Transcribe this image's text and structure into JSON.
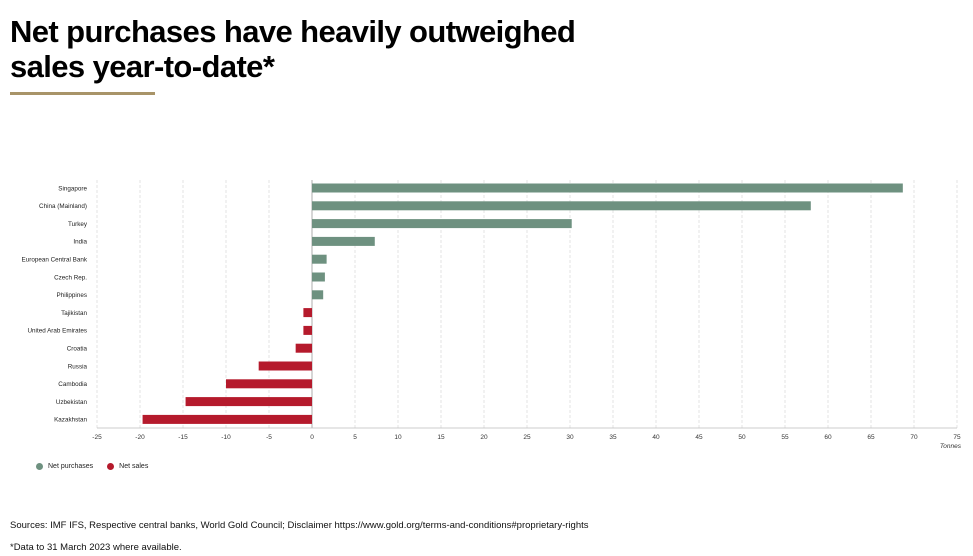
{
  "header": {
    "title_line1": "Net purchases have heavily outweighed",
    "title_line2": "sales year-to-date*",
    "accent_color": "#a89468"
  },
  "legend": {
    "purchases_label": "Net purchases",
    "sales_label": "Net sales"
  },
  "footer": {
    "sources": "Sources: IMF IFS, Respective central banks, World Gold Council; Disclaimer https://www.gold.org/terms-and-conditions#proprietary-rights",
    "note": "*Data to 31 March 2023 where available."
  },
  "chart_data": {
    "type": "bar",
    "orientation": "horizontal",
    "title": "Net purchases have heavily outweighed sales year-to-date*",
    "xlabel": "Tonnes",
    "ylabel": "",
    "xlim": [
      -25,
      75
    ],
    "xticks": [
      -25,
      -20,
      -15,
      -10,
      -5,
      0,
      5,
      10,
      15,
      20,
      25,
      30,
      35,
      40,
      45,
      50,
      55,
      60,
      65,
      70,
      75
    ],
    "grid": "vertical dashed",
    "legend_position": "bottom-left",
    "colors": {
      "purchases": "#6e9180",
      "sales": "#b51a2c"
    },
    "categories": [
      "Singapore",
      "China (Mainland)",
      "Turkey",
      "India",
      "European Central Bank",
      "Czech Rep.",
      "Philippines",
      "Tajikistan",
      "United Arab Emirates",
      "Croatia",
      "Russia",
      "Cambodia",
      "Uzbekistan",
      "Kazakhstan"
    ],
    "values": [
      68.7,
      58.0,
      30.2,
      7.3,
      1.7,
      1.5,
      1.3,
      -1.0,
      -1.0,
      -1.9,
      -6.2,
      -10.0,
      -14.7,
      -19.7
    ]
  }
}
